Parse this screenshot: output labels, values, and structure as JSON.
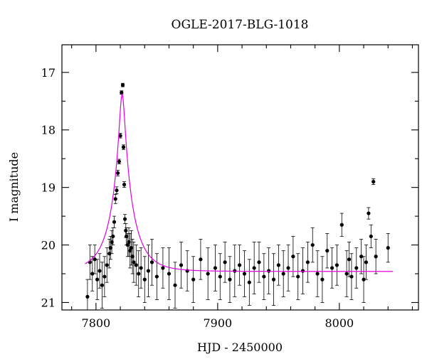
{
  "chart_data": {
    "type": "scatter",
    "title": "OGLE-2017-BLG-1018",
    "xlabel": "HJD - 2450000",
    "ylabel": "I magnitude",
    "xlim": [
      7772,
      8065
    ],
    "ylim": [
      21.13,
      16.52
    ],
    "y_inverted": true,
    "grid": false,
    "legend": "none",
    "x_major_ticks": [
      7800,
      7900,
      8000
    ],
    "x_minor_step": 20,
    "y_major_ticks": [
      17,
      18,
      19,
      20,
      21
    ],
    "y_minor_step": 0.5,
    "colors": {
      "data": "#000000",
      "model": "#e000e0"
    },
    "series": [
      {
        "kind": "points",
        "x": [
          7793,
          7795,
          7797,
          7799,
          7801,
          7803,
          7805,
          7807,
          7809,
          7811,
          7812,
          7813,
          7814,
          7815,
          7816,
          7817,
          7818,
          7819,
          7820,
          7821,
          7822,
          7822.6,
          7823.2,
          7823.8,
          7824.5,
          7825,
          7826,
          7827,
          7828,
          7829,
          7830,
          7831,
          7833,
          7835,
          7837,
          7840,
          7843,
          7846,
          7850,
          7855,
          7860,
          7865,
          7870,
          7875,
          7880,
          7886,
          7892,
          7898,
          7902,
          7906,
          7910,
          7914,
          7918,
          7922,
          7926,
          7930,
          7934,
          7938,
          7942,
          7946,
          7950,
          7954,
          7958,
          7962,
          7966,
          7970,
          7974,
          7978,
          7982,
          7986,
          7990,
          7994,
          7998,
          8002,
          8006,
          8008,
          8010,
          8014,
          8018,
          8020,
          8022,
          8024,
          8026,
          8028,
          8030,
          8040
        ],
        "y": [
          20.9,
          20.3,
          20.5,
          20.25,
          20.6,
          20.45,
          20.7,
          20.55,
          20.35,
          20.15,
          20.05,
          19.95,
          19.85,
          19.6,
          19.2,
          19.05,
          18.75,
          18.55,
          18.1,
          17.35,
          17.22,
          18.3,
          18.95,
          19.55,
          19.75,
          19.85,
          20.0,
          19.95,
          20.1,
          20.05,
          20.2,
          20.3,
          20.35,
          20.5,
          20.4,
          20.6,
          20.45,
          20.3,
          20.55,
          20.4,
          20.5,
          20.7,
          20.35,
          20.45,
          20.6,
          20.25,
          20.5,
          20.4,
          20.55,
          20.3,
          20.6,
          20.45,
          20.35,
          20.5,
          20.65,
          20.4,
          20.3,
          20.55,
          20.45,
          20.6,
          20.35,
          20.5,
          20.4,
          20.2,
          20.55,
          20.45,
          20.3,
          20.0,
          20.5,
          20.6,
          20.1,
          20.4,
          20.35,
          19.65,
          20.5,
          20.25,
          20.55,
          20.4,
          20.2,
          20.6,
          20.3,
          19.45,
          19.85,
          18.9,
          20.2,
          20.05
        ],
        "err": [
          0.3,
          0.3,
          0.3,
          0.25,
          0.35,
          0.3,
          0.4,
          0.35,
          0.3,
          0.25,
          0.2,
          0.2,
          0.15,
          0.1,
          0.08,
          0.06,
          0.05,
          0.04,
          0.04,
          0.03,
          0.03,
          0.04,
          0.05,
          0.08,
          0.12,
          0.15,
          0.2,
          0.25,
          0.3,
          0.3,
          0.3,
          0.35,
          0.35,
          0.4,
          0.35,
          0.4,
          0.45,
          0.4,
          0.4,
          0.35,
          0.45,
          0.4,
          0.4,
          0.35,
          0.4,
          0.35,
          0.45,
          0.4,
          0.4,
          0.35,
          0.4,
          0.45,
          0.35,
          0.4,
          0.4,
          0.45,
          0.35,
          0.4,
          0.4,
          0.45,
          0.35,
          0.4,
          0.4,
          0.35,
          0.4,
          0.4,
          0.35,
          0.3,
          0.4,
          0.4,
          0.3,
          0.35,
          0.35,
          0.2,
          0.4,
          0.3,
          0.4,
          0.35,
          0.3,
          0.4,
          0.3,
          0.1,
          0.2,
          0.05,
          0.3,
          0.25
        ]
      },
      {
        "kind": "model",
        "baseline": 20.46,
        "peak_t": 7821.5,
        "peak_mag": 17.38,
        "x_range": [
          7791,
          8044
        ]
      }
    ]
  }
}
